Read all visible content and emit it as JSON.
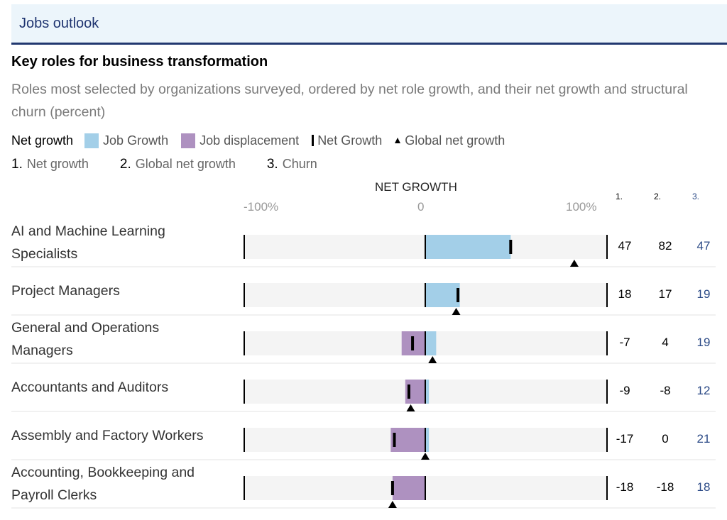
{
  "header": {
    "title": "Jobs outlook"
  },
  "colors": {
    "growth": "#a3cfe8",
    "displacement": "#ae91c0",
    "marker": "#000000",
    "churn_text": "#2b4a86",
    "header_accent": "#22386f"
  },
  "legend": {
    "label": "Net growth",
    "items": [
      {
        "label": "Job Growth",
        "icon": "blue-square"
      },
      {
        "label": "Job displacement",
        "icon": "purple-square"
      },
      {
        "label": "Net Growth",
        "icon": "vertical-bar"
      },
      {
        "label": "Global net growth",
        "icon": "triangle-up"
      }
    ],
    "columns": [
      {
        "num": "1.",
        "label": "Net growth"
      },
      {
        "num": "2.",
        "label": "Global net growth"
      },
      {
        "num": "3.",
        "label": "Churn"
      }
    ]
  },
  "chart_data": {
    "type": "bar",
    "title": "Key roles for business transformation",
    "subtitle": "Roles most selected by organizations surveyed, ordered by net role growth, and their net growth and structural churn (percent)",
    "xlabel": "NET GROWTH",
    "xlim": [
      -100,
      100
    ],
    "ticks": [
      "-100%",
      "0",
      "100%"
    ],
    "column_headers": [
      "1.",
      "2.",
      "3."
    ],
    "categories": [
      "AI and Machine Learning Specialists",
      "Project Managers",
      "General and Operations Managers",
      "Accountants and Auditors",
      "Assembly and Factory Workers",
      "Accounting, Bookkeeping and Payroll Clerks"
    ],
    "series": [
      {
        "name": "Job Growth",
        "values": [
          47,
          19,
          6,
          2,
          2,
          0
        ]
      },
      {
        "name": "Job displacement",
        "values": [
          0,
          0,
          -13,
          -11,
          -19,
          -18
        ]
      },
      {
        "name": "Net Growth",
        "values": [
          47,
          18,
          -7,
          -9,
          -17,
          -18
        ]
      },
      {
        "name": "Global net growth",
        "values": [
          82,
          17,
          4,
          -8,
          0,
          -18
        ]
      },
      {
        "name": "Churn",
        "values": [
          47,
          19,
          19,
          12,
          21,
          18
        ]
      }
    ],
    "rows": [
      {
        "label_line1": "AI and Machine Learning",
        "label_line2": "Specialists",
        "net": "47",
        "global": "82",
        "churn": "47"
      },
      {
        "label_line1": "Project Managers",
        "label_line2": "",
        "net": "18",
        "global": "17",
        "churn": "19"
      },
      {
        "label_line1": "General and Operations",
        "label_line2": "Managers",
        "net": "-7",
        "global": "4",
        "churn": "19"
      },
      {
        "label_line1": "Accountants and Auditors",
        "label_line2": "",
        "net": "-9",
        "global": "-8",
        "churn": "12"
      },
      {
        "label_line1": "Assembly and Factory Workers",
        "label_line2": "",
        "net": "-17",
        "global": "0",
        "churn": "21"
      },
      {
        "label_line1": "Accounting, Bookkeeping and",
        "label_line2": "Payroll Clerks",
        "net": "-18",
        "global": "-18",
        "churn": "18"
      }
    ]
  }
}
